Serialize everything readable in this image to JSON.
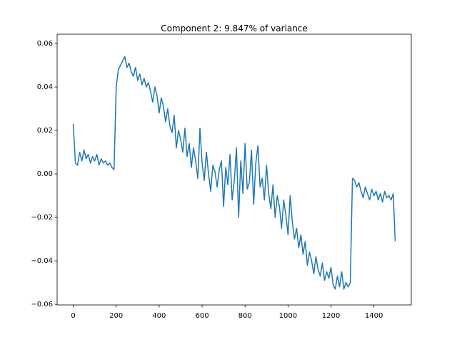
{
  "chart_data": {
    "type": "line",
    "title": "Component 2: 9.847% of variance",
    "color": "#1f77b4",
    "x": [
      0,
      10,
      20,
      30,
      40,
      50,
      60,
      70,
      80,
      90,
      100,
      110,
      120,
      130,
      140,
      150,
      160,
      170,
      180,
      190,
      200,
      210,
      220,
      230,
      240,
      250,
      260,
      270,
      280,
      290,
      300,
      310,
      320,
      330,
      340,
      350,
      360,
      370,
      380,
      390,
      400,
      410,
      420,
      430,
      440,
      450,
      460,
      470,
      480,
      490,
      500,
      510,
      520,
      530,
      540,
      550,
      560,
      570,
      580,
      590,
      600,
      610,
      620,
      630,
      640,
      650,
      660,
      670,
      680,
      690,
      700,
      710,
      720,
      730,
      740,
      750,
      760,
      770,
      780,
      790,
      800,
      810,
      820,
      830,
      840,
      850,
      860,
      870,
      880,
      890,
      900,
      910,
      920,
      930,
      940,
      950,
      960,
      970,
      980,
      990,
      1000,
      1010,
      1020,
      1030,
      1040,
      1050,
      1060,
      1070,
      1080,
      1090,
      1100,
      1110,
      1120,
      1130,
      1140,
      1150,
      1160,
      1170,
      1180,
      1190,
      1200,
      1210,
      1220,
      1230,
      1240,
      1250,
      1260,
      1270,
      1280,
      1290,
      1300,
      1310,
      1320,
      1330,
      1340,
      1350,
      1360,
      1370,
      1380,
      1390,
      1400,
      1410,
      1420,
      1430,
      1440,
      1450,
      1460,
      1470,
      1480,
      1490,
      1499
    ],
    "values": [
      0.023,
      0.005,
      0.004,
      0.01,
      0.006,
      0.011,
      0.007,
      0.009,
      0.005,
      0.008,
      0.006,
      0.009,
      0.004,
      0.007,
      0.005,
      0.006,
      0.004,
      0.005,
      0.003,
      0.002,
      0.04,
      0.048,
      0.05,
      0.052,
      0.054,
      0.049,
      0.051,
      0.047,
      0.045,
      0.049,
      0.043,
      0.046,
      0.041,
      0.044,
      0.04,
      0.042,
      0.038,
      0.033,
      0.04,
      0.036,
      0.028,
      0.035,
      0.031,
      0.024,
      0.03,
      0.022,
      0.019,
      0.027,
      0.012,
      0.02,
      0.016,
      0.01,
      0.021,
      0.008,
      0.014,
      0.003,
      0.012,
      0.006,
      -0.002,
      0.021,
      0.005,
      -0.003,
      0.01,
      0.0,
      -0.008,
      0.004,
      0.001,
      -0.006,
      0.002,
      0.006,
      -0.015,
      0.003,
      -0.005,
      0.009,
      -0.012,
      -0.003,
      0.012,
      -0.02,
      0.006,
      -0.009,
      0.014,
      -0.007,
      -0.004,
      0.011,
      -0.014,
      0.005,
      0.013,
      -0.006,
      -0.002,
      -0.012,
      0.004,
      -0.009,
      -0.016,
      -0.005,
      -0.02,
      -0.01,
      -0.015,
      -0.025,
      -0.012,
      -0.019,
      -0.028,
      -0.01,
      -0.022,
      -0.03,
      -0.025,
      -0.034,
      -0.028,
      -0.037,
      -0.031,
      -0.042,
      -0.036,
      -0.04,
      -0.046,
      -0.038,
      -0.044,
      -0.047,
      -0.041,
      -0.049,
      -0.045,
      -0.048,
      -0.043,
      -0.051,
      -0.053,
      -0.047,
      -0.052,
      -0.045,
      -0.053,
      -0.05,
      -0.052,
      -0.05,
      -0.002,
      -0.003,
      -0.006,
      -0.004,
      -0.008,
      -0.011,
      -0.006,
      -0.009,
      -0.012,
      -0.007,
      -0.01,
      -0.008,
      -0.012,
      -0.009,
      -0.013,
      -0.008,
      -0.011,
      -0.01,
      -0.012,
      -0.009,
      -0.031
    ],
    "xlim": [
      -75,
      1574
    ],
    "ylim": [
      -0.0603,
      0.0643
    ],
    "xticks": [
      0,
      200,
      400,
      600,
      800,
      1000,
      1200,
      1400
    ],
    "yticks": [
      {
        "value": -0.06,
        "label": "−0.06"
      },
      {
        "value": -0.04,
        "label": "−0.04"
      },
      {
        "value": -0.02,
        "label": "−0.02"
      },
      {
        "value": 0,
        "label": "0.00"
      },
      {
        "value": 0.02,
        "label": "0.02"
      },
      {
        "value": 0.04,
        "label": "0.04"
      },
      {
        "value": 0.06,
        "label": "0.06"
      }
    ]
  }
}
